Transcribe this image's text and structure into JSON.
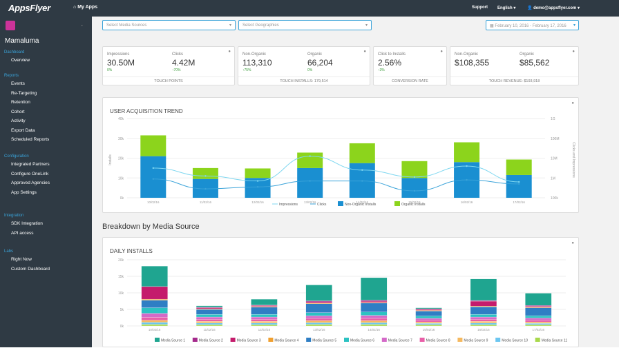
{
  "topbar": {
    "logo": "AppsFlyer",
    "my_apps": "My Apps",
    "support": "Support",
    "language": "English ▾",
    "user": "demo@appsflyer.com ▾"
  },
  "sidebar": {
    "app_name": "Mamaluma",
    "sections": [
      {
        "title": "Dashboard",
        "items": [
          "Overview"
        ]
      },
      {
        "title": "Reports",
        "items": [
          "Events",
          "Re-Targeting",
          "Retention",
          "Cohort",
          "Activity",
          "Export Data",
          "Scheduled Reports"
        ]
      },
      {
        "title": "Configuration",
        "items": [
          "Integrated Partners",
          "Configure OneLink",
          "Approved Agencies",
          "App Settings"
        ]
      },
      {
        "title": "Integration",
        "items": [
          "SDK Integration",
          "API access"
        ]
      },
      {
        "title": "Labs",
        "items": [
          "Right Now",
          "Custom Dashboard"
        ]
      }
    ]
  },
  "filters": {
    "media_sources": "Select Media Sources",
    "geographies": "Select Geographies",
    "date_range": "February 10, 2016 - February 17, 2016"
  },
  "kpi": [
    {
      "footer": "TOUCH POINTS",
      "a_label": "Impressions",
      "a_value": "30.50M",
      "a_sub": "0%",
      "b_label": "Clicks",
      "b_value": "4.42M",
      "b_sub": "↑70%"
    },
    {
      "footer": "TOUCH INSTALLS: 179,514",
      "a_label": "Non-Organic",
      "a_value": "113,310",
      "a_sub": "↑75%",
      "b_label": "Organic",
      "b_value": "66,204",
      "b_sub": "0%"
    },
    {
      "footer": "CONVERSION RATE",
      "a_label": "Click to Installs",
      "a_value": "2.56%",
      "a_sub": "↑3%",
      "b_label": "",
      "b_value": "",
      "b_sub": ""
    },
    {
      "footer": "TOUCH REVENUE: $193,918",
      "a_label": "Non-Organic",
      "a_value": "$108,355",
      "a_sub": "",
      "b_label": "Organic",
      "b_value": "$85,562",
      "b_sub": ""
    }
  ],
  "trend": {
    "title": "USER ACQUISITION TREND",
    "ylabel_left": "Installs",
    "ylabel_right": "Clicks and Impressions"
  },
  "breakdown": {
    "heading": "Breakdown by Media Source",
    "title": "DAILY INSTALLS"
  },
  "chart_data": [
    {
      "type": "bar",
      "title": "USER ACQUISITION TREND",
      "categories": [
        "10/02/16",
        "11/02/16",
        "12/02/16",
        "13/02/16",
        "14/02/16",
        "15/02/16",
        "16/02/16",
        "17/02/16"
      ],
      "ylim": [
        0,
        40000
      ],
      "yticks": [
        "0k",
        "10k",
        "20k",
        "30k",
        "40k"
      ],
      "y2ticks": [
        "100k",
        "1M",
        "10M",
        "100M",
        "1G"
      ],
      "series": [
        {
          "name": "Non-Organic Installs",
          "color": "#1a8fd1",
          "values": [
            21000,
            9500,
            10000,
            15000,
            17500,
            10000,
            18000,
            11500
          ]
        },
        {
          "name": "Organic Installs",
          "color": "#8cd41c",
          "values": [
            10500,
            5500,
            4800,
            7800,
            10000,
            8500,
            10000,
            7800
          ]
        },
        {
          "name": "Impressions",
          "color": "#7fd7f0",
          "values": [
            15000,
            11000,
            8500,
            21000,
            14000,
            10500,
            16000,
            8000
          ]
        },
        {
          "name": "Clicks",
          "color": "#3aa3d9",
          "values": [
            9500,
            4500,
            5500,
            8500,
            8500,
            3500,
            9000,
            7000
          ]
        }
      ],
      "legend": "bottom"
    },
    {
      "type": "bar",
      "title": "DAILY INSTALLS",
      "categories": [
        "10/02/16",
        "11/02/16",
        "12/02/16",
        "13/02/16",
        "14/02/16",
        "15/02/16",
        "16/02/16",
        "17/02/16"
      ],
      "ylim": [
        0,
        20000
      ],
      "yticks": [
        "0k",
        "5k",
        "10k",
        "15k",
        "20k"
      ],
      "series": [
        {
          "name": "Media Source 1",
          "color": "#1fa590",
          "values": [
            6200,
            400,
            1800,
            4800,
            6800,
            300,
            6500,
            3700
          ]
        },
        {
          "name": "Media Source 2",
          "color": "#a52a8c",
          "values": [
            0,
            200,
            100,
            300,
            300,
            200,
            200,
            200
          ]
        },
        {
          "name": "Media Source 3",
          "color": "#c41c6c",
          "values": [
            3800,
            300,
            300,
            400,
            400,
            300,
            1500,
            300
          ]
        },
        {
          "name": "Media Source 4",
          "color": "#f0a030",
          "values": [
            300,
            200,
            200,
            200,
            200,
            200,
            200,
            200
          ]
        },
        {
          "name": "Media Source 5",
          "color": "#2f7ec4",
          "values": [
            2300,
            1500,
            2200,
            2700,
            2700,
            1500,
            2300,
            2400
          ]
        },
        {
          "name": "Media Source 6",
          "color": "#2cc2c2",
          "values": [
            1700,
            800,
            800,
            900,
            1000,
            700,
            800,
            700
          ]
        },
        {
          "name": "Media Source 7",
          "color": "#d46ac8",
          "values": [
            1200,
            700,
            700,
            800,
            900,
            600,
            700,
            700
          ]
        },
        {
          "name": "Media Source 8",
          "color": "#e85fa8",
          "values": [
            900,
            600,
            600,
            700,
            700,
            500,
            600,
            500
          ]
        },
        {
          "name": "Media Source 9",
          "color": "#f5b960",
          "values": [
            600,
            500,
            500,
            600,
            600,
            400,
            500,
            400
          ]
        },
        {
          "name": "Media Source 10",
          "color": "#6cc6f0",
          "values": [
            600,
            500,
            500,
            500,
            500,
            400,
            500,
            400
          ]
        },
        {
          "name": "Media Source 11",
          "color": "#a8d84c",
          "values": [
            500,
            400,
            400,
            500,
            500,
            400,
            400,
            400
          ]
        }
      ],
      "legend": "bottom"
    }
  ]
}
